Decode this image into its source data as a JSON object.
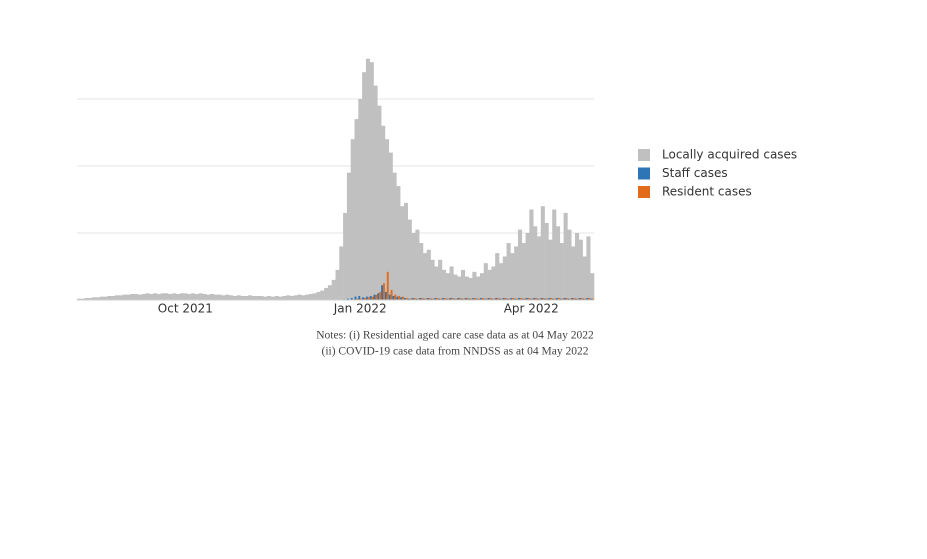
{
  "chart_data": {
    "type": "bar",
    "categories": [
      null,
      null,
      null,
      null,
      null,
      null,
      null,
      null,
      null,
      null,
      null,
      null,
      null,
      null,
      null,
      null,
      null,
      null,
      null,
      null,
      null,
      null,
      null,
      null,
      null,
      null,
      null,
      null,
      "Oct 2021",
      null,
      null,
      null,
      null,
      null,
      null,
      null,
      null,
      null,
      null,
      null,
      null,
      null,
      null,
      null,
      null,
      null,
      null,
      null,
      null,
      null,
      null,
      null,
      null,
      null,
      null,
      null,
      null,
      null,
      null,
      null,
      null,
      null,
      null,
      null,
      null,
      null,
      null,
      null,
      null,
      null,
      null,
      null,
      null,
      null,
      "Jan 2022",
      null,
      null,
      null,
      null,
      null,
      null,
      null,
      null,
      null,
      null,
      null,
      null,
      null,
      null,
      null,
      null,
      null,
      null,
      null,
      null,
      null,
      null,
      null,
      null,
      null,
      null,
      null,
      null,
      null,
      null,
      null,
      null,
      null,
      null,
      null,
      null,
      null,
      null,
      null,
      null,
      null,
      null,
      null,
      null,
      "Apr 2022",
      null,
      null,
      null,
      null,
      null,
      null,
      null,
      null,
      null,
      null,
      null,
      null,
      null,
      null,
      null,
      null
    ],
    "series": [
      {
        "name": "Locally acquired cases",
        "color": "#c0c0c0",
        "values": [
          0.02,
          0.02,
          0.03,
          0.03,
          0.04,
          0.04,
          0.05,
          0.05,
          0.06,
          0.06,
          0.07,
          0.07,
          0.08,
          0.08,
          0.09,
          0.09,
          0.08,
          0.09,
          0.1,
          0.09,
          0.1,
          0.09,
          0.1,
          0.1,
          0.09,
          0.1,
          0.09,
          0.1,
          0.1,
          0.09,
          0.1,
          0.09,
          0.1,
          0.09,
          0.08,
          0.09,
          0.08,
          0.08,
          0.07,
          0.08,
          0.07,
          0.06,
          0.07,
          0.06,
          0.06,
          0.07,
          0.06,
          0.06,
          0.06,
          0.05,
          0.06,
          0.05,
          0.06,
          0.05,
          0.06,
          0.07,
          0.06,
          0.07,
          0.08,
          0.07,
          0.08,
          0.09,
          0.1,
          0.12,
          0.14,
          0.18,
          0.22,
          0.3,
          0.45,
          0.8,
          1.3,
          1.9,
          2.4,
          2.7,
          3.0,
          3.4,
          3.6,
          3.55,
          3.2,
          2.9,
          2.6,
          2.4,
          2.2,
          1.9,
          1.7,
          1.4,
          1.45,
          1.2,
          1.0,
          1.05,
          0.85,
          0.7,
          0.75,
          0.6,
          0.5,
          0.6,
          0.45,
          0.4,
          0.5,
          0.38,
          0.35,
          0.45,
          0.35,
          0.33,
          0.42,
          0.35,
          0.4,
          0.55,
          0.45,
          0.5,
          0.7,
          0.55,
          0.65,
          0.85,
          0.7,
          0.8,
          1.05,
          0.85,
          1.0,
          1.35,
          1.1,
          0.95,
          1.4,
          1.15,
          0.9,
          1.35,
          1.1,
          0.85,
          1.3,
          1.05,
          0.8,
          1.0,
          0.9,
          0.65,
          0.95,
          0.4
        ]
      },
      {
        "name": "Staff cases",
        "color": "#2e75b6",
        "values": [
          0,
          0,
          0,
          0,
          0,
          0,
          0,
          0,
          0,
          0,
          0,
          0,
          0,
          0,
          0,
          0,
          0,
          0,
          0,
          0,
          0,
          0,
          0,
          0,
          0,
          0,
          0,
          0,
          0,
          0,
          0,
          0,
          0,
          0,
          0,
          0,
          0,
          0,
          0,
          0,
          0,
          0,
          0,
          0,
          0,
          0,
          0,
          0,
          0,
          0,
          0,
          0,
          0,
          0,
          0,
          0,
          0,
          0,
          0,
          0,
          0,
          0,
          0,
          0,
          0,
          0,
          0,
          0,
          0,
          0,
          0.01,
          0.02,
          0.03,
          0.05,
          0.06,
          0.04,
          0.05,
          0.06,
          0.08,
          0.1,
          0.22,
          0.12,
          0.08,
          0.06,
          0.05,
          0.04,
          0.03,
          0.02,
          0.03,
          0.02,
          0.03,
          0.02,
          0.03,
          0.02,
          0.03,
          0.02,
          0.03,
          0.02,
          0.03,
          0.02,
          0.03,
          0.02,
          0.03,
          0.02,
          0.03,
          0.02,
          0.03,
          0.02,
          0.03,
          0.02,
          0.03,
          0.02,
          0.03,
          0.02,
          0.03,
          0.02,
          0.03,
          0.02,
          0.03,
          0.02,
          0.03,
          0.02,
          0.03,
          0.02,
          0.03,
          0.02,
          0.03,
          0.02,
          0.03,
          0.02,
          0.03,
          0.02,
          0.03,
          0.02,
          0.03,
          0.02
        ]
      },
      {
        "name": "Resident cases",
        "color": "#e06c1c",
        "values": [
          0,
          0,
          0,
          0,
          0,
          0,
          0,
          0,
          0,
          0,
          0,
          0,
          0,
          0,
          0,
          0,
          0,
          0,
          0,
          0,
          0,
          0,
          0,
          0,
          0,
          0,
          0,
          0,
          0,
          0,
          0,
          0,
          0,
          0,
          0,
          0,
          0,
          0,
          0,
          0,
          0,
          0,
          0,
          0,
          0,
          0,
          0,
          0,
          0,
          0,
          0,
          0,
          0,
          0,
          0,
          0,
          0,
          0,
          0,
          0,
          0,
          0,
          0,
          0,
          0,
          0,
          0,
          0,
          0,
          0,
          0,
          0,
          0.01,
          0.02,
          0.02,
          0.03,
          0.04,
          0.05,
          0.08,
          0.12,
          0.25,
          0.42,
          0.15,
          0.08,
          0.06,
          0.05,
          0.03,
          0.02,
          0.03,
          0.02,
          0.03,
          0.02,
          0.03,
          0.02,
          0.03,
          0.02,
          0.03,
          0.02,
          0.03,
          0.02,
          0.03,
          0.02,
          0.03,
          0.02,
          0.03,
          0.02,
          0.03,
          0.02,
          0.03,
          0.02,
          0.03,
          0.02,
          0.03,
          0.02,
          0.03,
          0.02,
          0.03,
          0.02,
          0.03,
          0.02,
          0.03,
          0.02,
          0.03,
          0.02,
          0.03,
          0.02,
          0.03,
          0.02,
          0.03,
          0.02,
          0.03,
          0.02,
          0.03,
          0.02,
          0.03,
          0.02
        ]
      }
    ],
    "ylim": [
      0,
      3.6
    ],
    "gridlines": [
      1,
      2,
      3
    ],
    "notes": [
      "Notes: (i) Residential aged care case data as at 04 May 2022",
      "(ii) COVID-19 case data from NNDSS as at 04 May 2022"
    ]
  }
}
